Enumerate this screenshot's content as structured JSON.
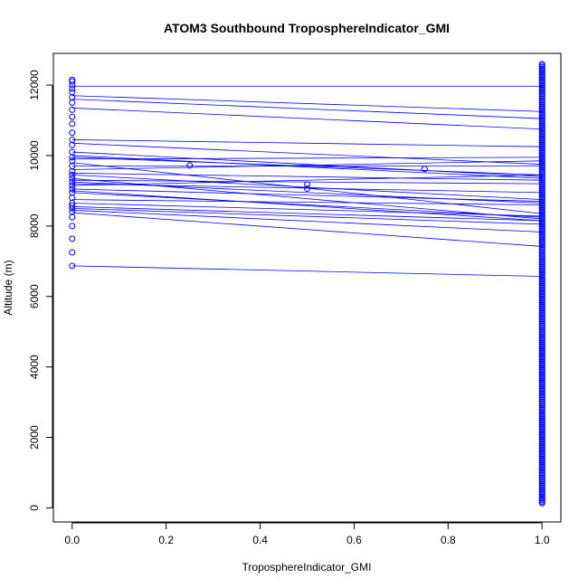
{
  "chart_data": {
    "type": "scatter",
    "title": "ATOM3 Southbound TroposphereIndicator_GMI",
    "xlabel": "TroposphereIndicator_GMI",
    "ylabel": "Altitude (m)",
    "xlim": [
      -0.04,
      1.04
    ],
    "ylim": [
      -400,
      12900
    ],
    "x_ticks": [
      0,
      0.2,
      0.4,
      0.6,
      0.8,
      1
    ],
    "x_tick_labels": [
      "0.0",
      "0.2",
      "0.4",
      "0.6",
      "0.8",
      "1.0"
    ],
    "y_ticks": [
      0,
      2000,
      4000,
      6000,
      8000,
      10000,
      12000
    ],
    "y_tick_labels": [
      "0",
      "2000",
      "4000",
      "6000",
      "8000",
      "10000",
      "12000"
    ],
    "grid": false,
    "legend": "none",
    "color": "#0000ff",
    "marker": "open-circle",
    "points": [
      {
        "x": 0,
        "y": 6870
      },
      {
        "x": 0,
        "y": 7250
      },
      {
        "x": 0,
        "y": 7640
      },
      {
        "x": 0,
        "y": 8000
      },
      {
        "x": 0,
        "y": 8250
      },
      {
        "x": 0,
        "y": 8400
      },
      {
        "x": 0,
        "y": 8500
      },
      {
        "x": 0,
        "y": 8580
      },
      {
        "x": 0,
        "y": 8650
      },
      {
        "x": 0,
        "y": 8800
      },
      {
        "x": 0,
        "y": 8950
      },
      {
        "x": 0,
        "y": 9050
      },
      {
        "x": 0,
        "y": 9150
      },
      {
        "x": 0,
        "y": 9250
      },
      {
        "x": 0,
        "y": 9350
      },
      {
        "x": 0,
        "y": 9450
      },
      {
        "x": 0,
        "y": 9550
      },
      {
        "x": 0,
        "y": 9700
      },
      {
        "x": 0,
        "y": 9850
      },
      {
        "x": 0,
        "y": 9950
      },
      {
        "x": 0,
        "y": 10100
      },
      {
        "x": 0,
        "y": 10300
      },
      {
        "x": 0,
        "y": 10450
      },
      {
        "x": 0,
        "y": 10650
      },
      {
        "x": 0,
        "y": 10900
      },
      {
        "x": 0,
        "y": 11100
      },
      {
        "x": 0,
        "y": 11300
      },
      {
        "x": 0,
        "y": 11500
      },
      {
        "x": 0,
        "y": 11650
      },
      {
        "x": 0,
        "y": 11800
      },
      {
        "x": 0,
        "y": 11900
      },
      {
        "x": 0,
        "y": 12000
      },
      {
        "x": 0,
        "y": 12100
      },
      {
        "x": 0,
        "y": 12150
      },
      {
        "x": 0.25,
        "y": 9720
      },
      {
        "x": 0.5,
        "y": 9180
      },
      {
        "x": 0.5,
        "y": 9060
      },
      {
        "x": 0.75,
        "y": 9620
      }
    ],
    "column_at_one": {
      "x": 1,
      "y_min": 130,
      "y_max": 12600
    },
    "segments": [
      [
        6870,
        6570
      ],
      [
        8380,
        7420
      ],
      [
        8450,
        7830
      ],
      [
        8500,
        8050
      ],
      [
        8550,
        8150
      ],
      [
        8650,
        8280
      ],
      [
        8750,
        8600
      ],
      [
        8950,
        8250
      ],
      [
        9000,
        8150
      ],
      [
        9050,
        8700
      ],
      [
        9150,
        9450
      ],
      [
        9200,
        8950
      ],
      [
        9250,
        8650
      ],
      [
        9300,
        9200
      ],
      [
        9350,
        8200
      ],
      [
        9450,
        8750
      ],
      [
        9500,
        9300
      ],
      [
        9600,
        9850
      ],
      [
        9700,
        9700
      ],
      [
        9800,
        8350
      ],
      [
        9900,
        9950
      ],
      [
        9950,
        9450
      ],
      [
        10000,
        9350
      ],
      [
        10100,
        9400
      ],
      [
        10350,
        9750
      ],
      [
        10450,
        10250
      ],
      [
        11350,
        10750
      ],
      [
        11600,
        11050
      ],
      [
        11700,
        11250
      ],
      [
        11970,
        11970
      ]
    ]
  }
}
